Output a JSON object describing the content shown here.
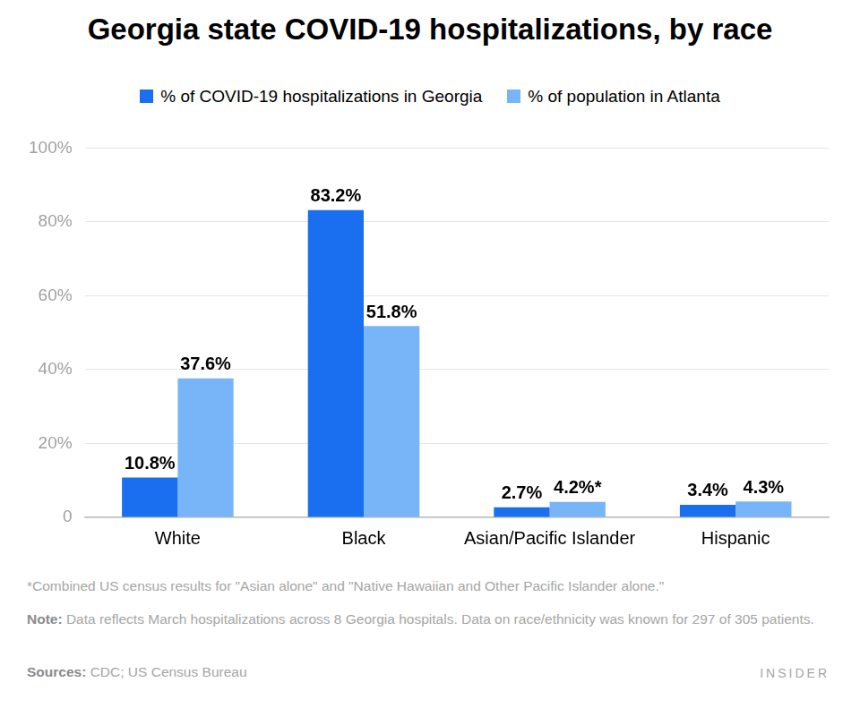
{
  "chart_data": {
    "type": "bar",
    "title": "Georgia state COVID-19 hospitalizations, by race",
    "categories": [
      "White",
      "Black",
      "Asian/Pacific Islander",
      "Hispanic"
    ],
    "series": [
      {
        "name": "% of COVID-19 hospitalizations in Georgia",
        "color": "#1a6ff0",
        "values": [
          10.8,
          83.2,
          2.7,
          3.4
        ],
        "value_labels": [
          "10.8%",
          "83.2%",
          "2.7%",
          "3.4%"
        ]
      },
      {
        "name": "% of population in Atlanta",
        "color": "#78b5f8",
        "values": [
          37.6,
          51.8,
          4.2,
          4.3
        ],
        "value_labels": [
          "37.6%",
          "51.8%",
          "4.2%*",
          "4.3%"
        ]
      }
    ],
    "ylim": [
      0,
      100
    ],
    "yticks": [
      0,
      {
        "value": 20,
        "label": "20%"
      },
      {
        "value": 40,
        "label": "40%"
      },
      {
        "value": 60,
        "label": "60%"
      },
      {
        "value": 80,
        "label": "80%"
      },
      {
        "value": 100,
        "label": "100%"
      }
    ],
    "grid": true,
    "legend": "top",
    "data_labels": true,
    "footnote": "*Combined US census results for \"Asian alone\" and \"Native Hawaiian and Other Pacific Islander alone.\"",
    "note": {
      "label": "Note:",
      "text": "Data reflects March hospitalizations across 8 Georgia hospitals. Data on race/ethnicity was known for 297 of 305 patients."
    },
    "source": {
      "label": "Sources:",
      "text": "CDC; US Census Bureau"
    },
    "brand": "INSIDER"
  }
}
